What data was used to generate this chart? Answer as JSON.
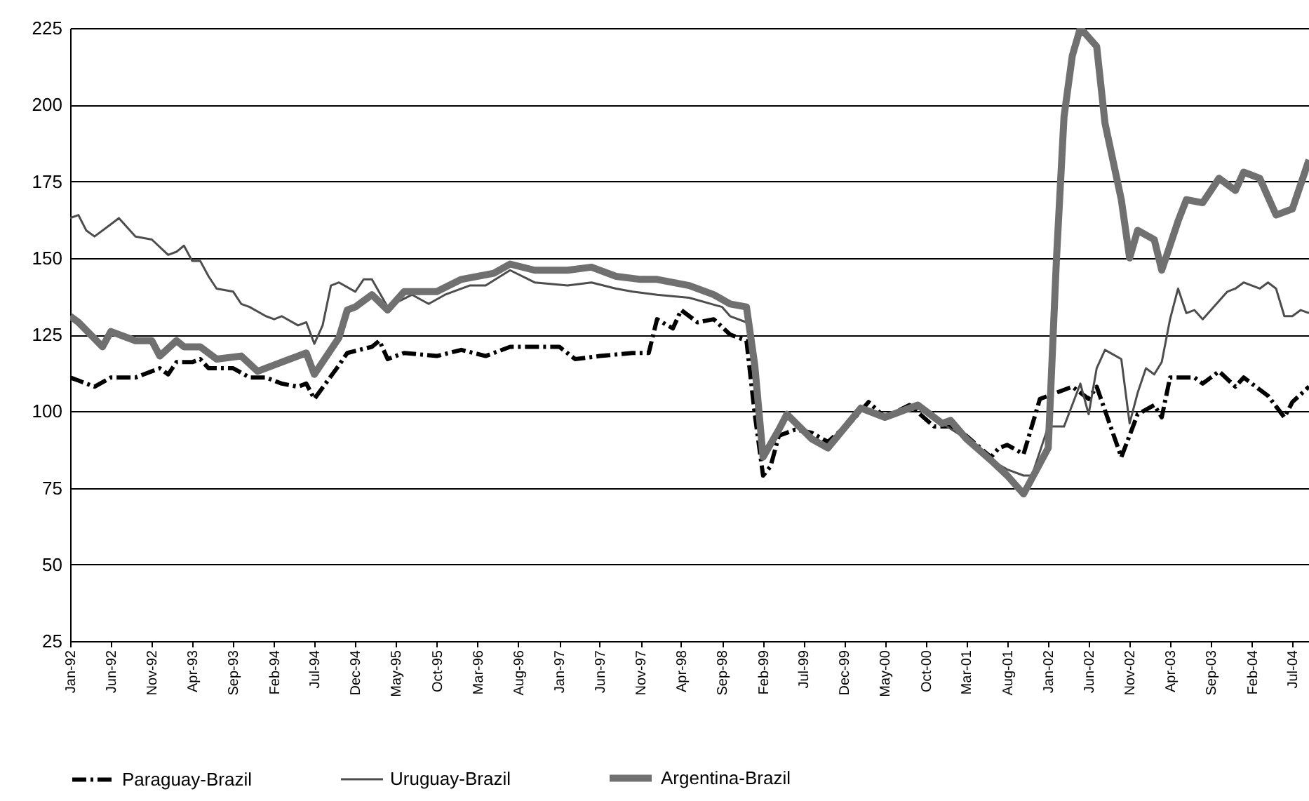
{
  "chart_data": {
    "type": "line",
    "xlim": [
      "1992-01",
      "2004-09"
    ],
    "xticks": [
      {
        "value": "1992-01",
        "label": "Jan-92"
      },
      {
        "value": "1992-06",
        "label": "Jun-92"
      },
      {
        "value": "1992-11",
        "label": "Nov-92"
      },
      {
        "value": "1993-04",
        "label": "Apr-93"
      },
      {
        "value": "1993-09",
        "label": "Sep-93"
      },
      {
        "value": "1994-02",
        "label": "Feb-94"
      },
      {
        "value": "1994-07",
        "label": "Jul-94"
      },
      {
        "value": "1994-12",
        "label": "Dec-94"
      },
      {
        "value": "1995-05",
        "label": "May-95"
      },
      {
        "value": "1995-10",
        "label": "Oct-95"
      },
      {
        "value": "1996-03",
        "label": "Mar-96"
      },
      {
        "value": "1996-08",
        "label": "Aug-96"
      },
      {
        "value": "1997-01",
        "label": "Jan-97"
      },
      {
        "value": "1997-06",
        "label": "Jun-97"
      },
      {
        "value": "1997-11",
        "label": "Nov-97"
      },
      {
        "value": "1998-04",
        "label": "Apr-98"
      },
      {
        "value": "1998-09",
        "label": "Sep-98"
      },
      {
        "value": "1999-02",
        "label": "Feb-99"
      },
      {
        "value": "1999-07",
        "label": "Jul-99"
      },
      {
        "value": "1999-12",
        "label": "Dec-99"
      },
      {
        "value": "2000-05",
        "label": "May-00"
      },
      {
        "value": "2000-10",
        "label": "Oct-00"
      },
      {
        "value": "2001-03",
        "label": "Mar-01"
      },
      {
        "value": "2001-08",
        "label": "Aug-01"
      },
      {
        "value": "2002-01",
        "label": "Jan-02"
      },
      {
        "value": "2002-06",
        "label": "Jun-02"
      },
      {
        "value": "2002-11",
        "label": "Nov-02"
      },
      {
        "value": "2003-04",
        "label": "Apr-03"
      },
      {
        "value": "2003-09",
        "label": "Sep-03"
      },
      {
        "value": "2004-02",
        "label": "Feb-04"
      },
      {
        "value": "2004-07",
        "label": "Jul-04"
      }
    ],
    "ylim": [
      25,
      225
    ],
    "yticks": [
      25,
      50,
      75,
      100,
      125,
      150,
      175,
      200,
      225
    ],
    "grid": "y",
    "legend": "bottom",
    "series": [
      {
        "name": "Paraguay-Brazil",
        "color": "#000000",
        "line_style": "dashed",
        "x": [
          "1992-01",
          "1992-02",
          "1992-04",
          "1992-06",
          "1992-09",
          "1992-12",
          "1993-01",
          "1993-02",
          "1993-04",
          "1993-05",
          "1993-06",
          "1993-09",
          "1993-11",
          "1994-01",
          "1994-03",
          "1994-05",
          "1994-06",
          "1994-07",
          "1994-10",
          "1994-11",
          "1995-02",
          "1995-03",
          "1995-04",
          "1995-05",
          "1995-06",
          "1995-10",
          "1996-01",
          "1996-04",
          "1996-07",
          "1996-10",
          "1997-01",
          "1997-03",
          "1997-06",
          "1997-10",
          "1997-12",
          "1998-01",
          "1998-03",
          "1998-04",
          "1998-06",
          "1998-08",
          "1998-10",
          "1998-12",
          "1999-01",
          "1999-02",
          "1999-03",
          "1999-04",
          "1999-06",
          "1999-08",
          "1999-10",
          "2000-01",
          "2000-03",
          "2000-05",
          "2000-08",
          "2000-11",
          "2001-01",
          "2001-03",
          "2001-06",
          "2001-07",
          "2001-08",
          "2001-10",
          "2001-12",
          "2002-01",
          "2002-04",
          "2002-06",
          "2002-07",
          "2002-10",
          "2002-12",
          "2003-02",
          "2003-03",
          "2003-04",
          "2003-07",
          "2003-08",
          "2003-10",
          "2003-12",
          "2004-01",
          "2004-04",
          "2004-06",
          "2004-07",
          "2004-09"
        ],
        "values": [
          111,
          110,
          108,
          111,
          111,
          114,
          112,
          116,
          116,
          117,
          114,
          114,
          111,
          111,
          109,
          108,
          109,
          104,
          115,
          119,
          121,
          123,
          117,
          118,
          119,
          118,
          120,
          118,
          121,
          121,
          121,
          117,
          118,
          119,
          119,
          130,
          127,
          133,
          129,
          130,
          125,
          123,
          99,
          79,
          82,
          92,
          94,
          93,
          90,
          97,
          103,
          98,
          102,
          95,
          95,
          92,
          85,
          88,
          89,
          86,
          104,
          105,
          108,
          104,
          108,
          85,
          99,
          102,
          98,
          111,
          111,
          109,
          113,
          108,
          111,
          105,
          98,
          103,
          108
        ]
      },
      {
        "name": "Uruguay-Brazil",
        "color": "#4d4d4d",
        "line_style": "solid",
        "x": [
          "1992-01",
          "1992-02",
          "1992-03",
          "1992-04",
          "1992-06",
          "1992-07",
          "1992-09",
          "1992-11",
          "1993-01",
          "1993-02",
          "1993-03",
          "1993-04",
          "1993-05",
          "1993-06",
          "1993-07",
          "1993-09",
          "1993-10",
          "1993-11",
          "1994-01",
          "1994-02",
          "1994-03",
          "1994-05",
          "1994-06",
          "1994-07",
          "1994-08",
          "1994-09",
          "1994-10",
          "1994-12",
          "1995-01",
          "1995-02",
          "1995-04",
          "1995-07",
          "1995-09",
          "1995-11",
          "1996-02",
          "1996-04",
          "1996-07",
          "1996-10",
          "1997-02",
          "1997-05",
          "1997-08",
          "1997-10",
          "1998-01",
          "1998-05",
          "1998-09",
          "1998-10",
          "1998-12",
          "1999-01",
          "1999-02",
          "1999-04",
          "1999-05",
          "1999-08",
          "1999-10",
          "2000-02",
          "2000-05",
          "2000-09",
          "2000-12",
          "2001-03",
          "2001-06",
          "2001-08",
          "2001-10",
          "2001-11",
          "2002-01",
          "2002-03",
          "2002-05",
          "2002-06",
          "2002-07",
          "2002-08",
          "2002-10",
          "2002-11",
          "2002-12",
          "2003-01",
          "2003-02",
          "2003-03",
          "2003-04",
          "2003-05",
          "2003-06",
          "2003-07",
          "2003-08",
          "2003-11",
          "2003-12",
          "2004-01",
          "2004-03",
          "2004-04",
          "2004-05",
          "2004-06",
          "2004-07",
          "2004-08",
          "2004-09"
        ],
        "values": [
          163,
          164,
          159,
          157,
          161,
          163,
          157,
          156,
          151,
          152,
          154,
          149,
          149,
          144,
          140,
          139,
          135,
          134,
          131,
          130,
          131,
          128,
          129,
          122,
          128,
          141,
          142,
          139,
          143,
          143,
          134,
          138,
          135,
          138,
          141,
          141,
          146,
          142,
          141,
          142,
          140,
          139,
          138,
          137,
          134,
          131,
          129,
          115,
          85,
          94,
          99,
          91,
          88,
          101,
          98,
          102,
          96,
          91,
          84,
          81,
          79,
          79,
          95,
          95,
          109,
          99,
          114,
          120,
          117,
          96,
          106,
          114,
          112,
          116,
          130,
          140,
          132,
          133,
          130,
          139,
          140,
          142,
          140,
          142,
          140,
          131,
          131,
          133,
          132
        ]
      },
      {
        "name": "Argentina-Brazil",
        "color": "#707070",
        "line_style": "solid",
        "x": [
          "1992-01",
          "1992-02",
          "1992-05",
          "1992-06",
          "1992-09",
          "1992-11",
          "1992-12",
          "1993-02",
          "1993-03",
          "1993-05",
          "1993-07",
          "1993-10",
          "1993-12",
          "1994-03",
          "1994-05",
          "1994-06",
          "1994-07",
          "1994-10",
          "1994-11",
          "1994-12",
          "1995-02",
          "1995-04",
          "1995-06",
          "1995-10",
          "1996-01",
          "1996-05",
          "1996-07",
          "1996-10",
          "1997-02",
          "1997-05",
          "1997-08",
          "1997-11",
          "1998-01",
          "1998-05",
          "1998-08",
          "1998-10",
          "1998-12",
          "1999-01",
          "1999-02",
          "1999-04",
          "1999-05",
          "1999-08",
          "1999-10",
          "2000-02",
          "2000-05",
          "2000-09",
          "2000-12",
          "2001-01",
          "2001-03",
          "2001-06",
          "2001-08",
          "2001-10",
          "2002-01",
          "2002-02",
          "2002-03",
          "2002-04",
          "2002-05",
          "2002-07",
          "2002-08",
          "2002-10",
          "2002-11",
          "2002-12",
          "2003-02",
          "2003-03",
          "2003-05",
          "2003-06",
          "2003-08",
          "2003-10",
          "2003-12",
          "2004-01",
          "2004-03",
          "2004-05",
          "2004-07",
          "2004-09"
        ],
        "values": [
          131,
          129,
          121,
          126,
          123,
          123,
          118,
          123,
          121,
          121,
          117,
          118,
          113,
          116,
          118,
          119,
          112,
          124,
          133,
          134,
          138,
          133,
          139,
          139,
          143,
          145,
          148,
          146,
          146,
          147,
          144,
          143,
          143,
          141,
          138,
          135,
          134,
          115,
          85,
          94,
          99,
          91,
          88,
          101,
          98,
          102,
          96,
          97,
          91,
          84,
          79,
          73,
          88,
          150,
          196,
          216,
          225,
          219,
          194,
          169,
          150,
          159,
          156,
          146,
          162,
          169,
          168,
          176,
          172,
          178,
          176,
          164,
          166,
          182
        ]
      }
    ]
  }
}
